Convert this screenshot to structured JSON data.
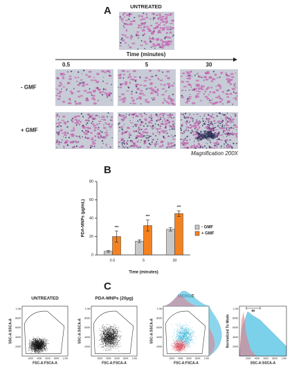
{
  "panel_a": {
    "letter": "A",
    "untreated": "UNTREATED",
    "time_label": "Time (minutes)",
    "columns": [
      "0.5",
      "5",
      "30"
    ],
    "rows": [
      "- GMF",
      "+ GMF"
    ],
    "magnification": "Magnification 200X"
  },
  "panel_b": {
    "letter": "B"
  },
  "chart_data": {
    "type": "bar",
    "ylabel": "PDA-MNPs (µg/mL)",
    "xlabel": "Time (minutes)",
    "categories": [
      "0.5",
      "5",
      "30"
    ],
    "series": [
      {
        "name": "- GMF",
        "color": "#c8c8c8",
        "values": [
          4,
          15,
          28
        ],
        "errors": [
          1,
          1.5,
          2
        ]
      },
      {
        "name": "+ GMF",
        "color": "#f58220",
        "values": [
          20,
          32,
          45
        ],
        "errors": [
          6,
          6,
          3
        ],
        "significance": [
          "***",
          "***",
          "***"
        ]
      }
    ],
    "ylim": [
      0,
      80
    ],
    "yticks": [
      0,
      20,
      40,
      60,
      80
    ],
    "legend": "right"
  },
  "panel_c": {
    "letter": "C",
    "plots": [
      {
        "title": "UNTREATED",
        "xlabel": "FSC-A:FSCA-A",
        "ylabel": "SSC-A:SSCA-A"
      },
      {
        "title": "PDA-MNPs (20µg)",
        "xlabel": "FSC-A:FSCA-A",
        "ylabel": "SSC-A:SSCA-A"
      },
      {
        "title": "MERGE",
        "xlabel": "FSC-A:FSCA-A",
        "ylabel": "SSC-A:SSCA-A"
      }
    ],
    "ticks": [
      "200K",
      "400K",
      "600K",
      "800K",
      "1.0M"
    ],
    "histogram": {
      "ylabel": "Normalized To Mode",
      "xlabel": "SSC-A:SSCA-A",
      "gate": "80"
    }
  }
}
